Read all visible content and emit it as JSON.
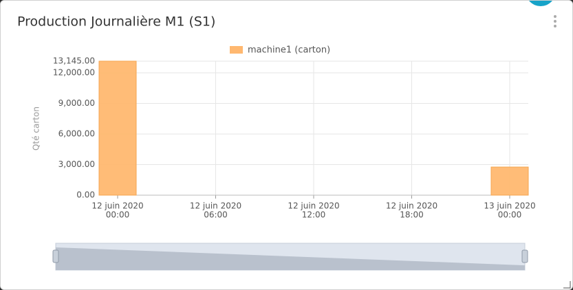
{
  "chart_data": {
    "type": "bar",
    "title": "Production Journalière M1 (S1)",
    "y_label": "Qté carton",
    "categories": [
      [
        "12 juin 2020",
        "00:00"
      ],
      [
        "12 juin 2020",
        "06:00"
      ],
      [
        "12 juin 2020",
        "12:00"
      ],
      [
        "12 juin 2020",
        "18:00"
      ],
      [
        "13 juin 2020",
        "00:00"
      ]
    ],
    "series": [
      {
        "name": "machine1  (carton)",
        "color": "#ffb870",
        "values": [
          13145,
          null,
          null,
          null,
          2760
        ]
      }
    ],
    "ylim": [
      0,
      13145
    ],
    "yticks": [
      {
        "value": 0,
        "label": "0.00"
      },
      {
        "value": 3000,
        "label": "3,000.00"
      },
      {
        "value": 6000,
        "label": "6,000.00"
      },
      {
        "value": 9000,
        "label": "9,000.00"
      },
      {
        "value": 12000,
        "label": "12,000.00"
      },
      {
        "value": 13145,
        "label": "13,145.00"
      }
    ],
    "grid": true
  }
}
